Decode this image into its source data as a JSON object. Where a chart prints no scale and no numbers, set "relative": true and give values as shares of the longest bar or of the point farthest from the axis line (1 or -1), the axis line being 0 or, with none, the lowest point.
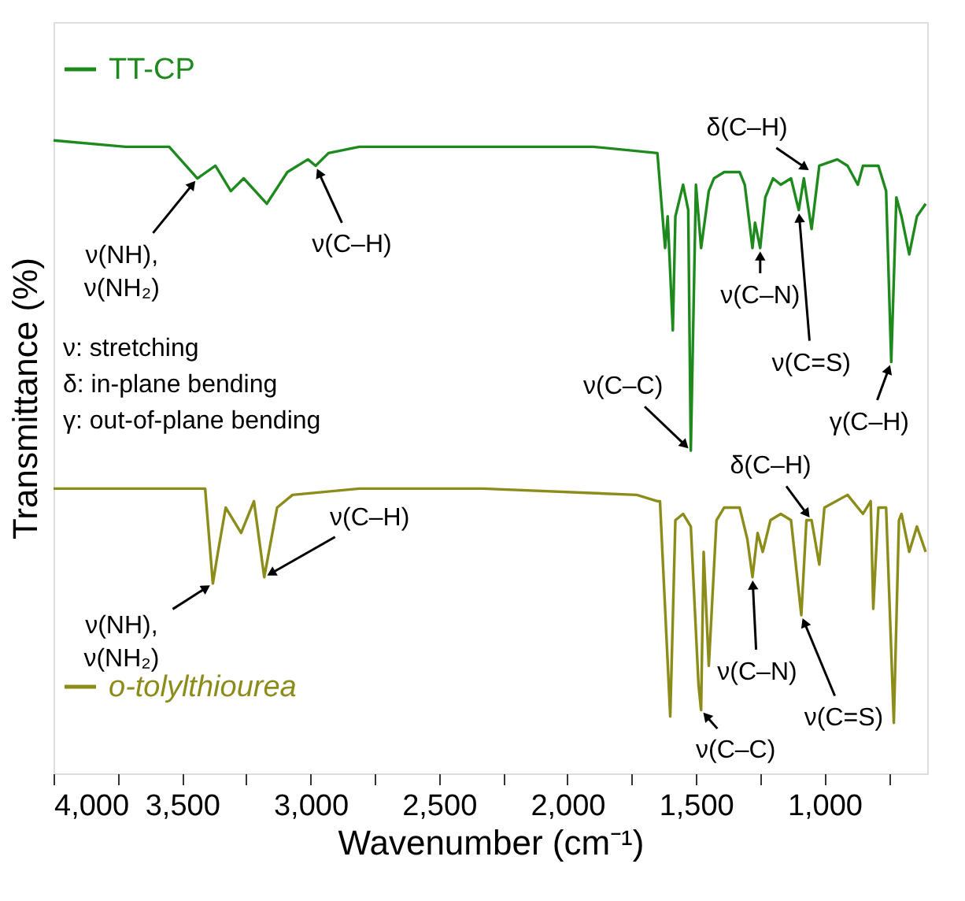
{
  "chart_data": {
    "type": "line",
    "relative": true,
    "legend": "left",
    "line_style": "solid",
    "marker": "none",
    "xlabel": "Wavenumber (cm⁻¹)",
    "ylabel": "Transmittance (%)",
    "xlim": [
      4000,
      600
    ],
    "xticks": [
      {
        "value": 4000,
        "label": "4,000"
      },
      {
        "value": 3750,
        "label": null
      },
      {
        "value": 3500,
        "label": "3,500"
      },
      {
        "value": 3250,
        "label": null
      },
      {
        "value": 3000,
        "label": "3,000"
      },
      {
        "value": 2750,
        "label": null
      },
      {
        "value": 2500,
        "label": "2,500"
      },
      {
        "value": 2250,
        "label": null
      },
      {
        "value": 2000,
        "label": "2,000"
      },
      {
        "value": 1750,
        "label": null
      },
      {
        "value": 1500,
        "label": "1,500"
      },
      {
        "value": 1250,
        "label": null
      },
      {
        "value": 1000,
        "label": "1,000"
      },
      {
        "value": 750,
        "label": null
      }
    ],
    "series": [
      {
        "name": "TT-CP",
        "color": "#1e8a1e",
        "x": [
          4000,
          3720,
          3550,
          3440,
          3370,
          3310,
          3260,
          3170,
          3090,
          3010,
          2980,
          2930,
          2810,
          2320,
          1900,
          1650,
          1620,
          1610,
          1590,
          1580,
          1550,
          1530,
          1520,
          1500,
          1480,
          1450,
          1430,
          1390,
          1330,
          1310,
          1280,
          1270,
          1250,
          1230,
          1200,
          1170,
          1130,
          1100,
          1080,
          1050,
          1020,
          950,
          910,
          870,
          850,
          790,
          760,
          740,
          720,
          700,
          670,
          640,
          606
        ],
        "values": [
          1.0,
          0.99,
          0.99,
          0.94,
          0.96,
          0.92,
          0.94,
          0.9,
          0.95,
          0.97,
          0.96,
          0.98,
          0.99,
          0.99,
          0.99,
          0.98,
          0.83,
          0.88,
          0.7,
          0.88,
          0.93,
          0.89,
          0.51,
          0.93,
          0.83,
          0.92,
          0.94,
          0.95,
          0.95,
          0.93,
          0.83,
          0.87,
          0.83,
          0.91,
          0.94,
          0.93,
          0.94,
          0.89,
          0.94,
          0.86,
          0.96,
          0.97,
          0.96,
          0.93,
          0.96,
          0.96,
          0.92,
          0.65,
          0.91,
          0.88,
          0.82,
          0.88,
          0.9
        ]
      },
      {
        "name": "o-tolylthiourea",
        "color": "#8c8c1a",
        "x": [
          4000,
          3410,
          3380,
          3360,
          3330,
          3270,
          3220,
          3180,
          3130,
          3070,
          2810,
          2330,
          1730,
          1650,
          1640,
          1600,
          1580,
          1550,
          1520,
          1490,
          1480,
          1470,
          1450,
          1420,
          1390,
          1330,
          1300,
          1280,
          1260,
          1240,
          1210,
          1170,
          1130,
          1090,
          1070,
          1050,
          1020,
          1000,
          910,
          850,
          820,
          810,
          790,
          760,
          730,
          710,
          700,
          670,
          640,
          606
        ],
        "values": [
          0.45,
          0.45,
          0.3,
          0.35,
          0.42,
          0.38,
          0.43,
          0.31,
          0.42,
          0.44,
          0.45,
          0.45,
          0.44,
          0.43,
          0.43,
          0.09,
          0.4,
          0.41,
          0.39,
          0.14,
          0.1,
          0.35,
          0.17,
          0.4,
          0.42,
          0.42,
          0.37,
          0.31,
          0.38,
          0.35,
          0.4,
          0.41,
          0.4,
          0.25,
          0.4,
          0.4,
          0.33,
          0.42,
          0.44,
          0.41,
          0.43,
          0.26,
          0.42,
          0.42,
          0.08,
          0.4,
          0.41,
          0.35,
          0.39,
          0.35
        ]
      }
    ],
    "annotations": [
      "ν: stretching",
      "δ: in-plane bending",
      "γ: out-of-plane bending",
      {
        "text": "ν(NH),\nν(NH₂)",
        "x": 3440,
        "y": 0.94
      },
      {
        "text": "ν(C–H)",
        "x": 2980,
        "y": 0.96
      },
      {
        "text": "ν(C–C)",
        "x": 1520,
        "y": 0.51
      },
      {
        "text": "δ(C–H)",
        "x": 1050,
        "y": 0.95
      },
      {
        "text": "ν(C–N)",
        "x": 1250,
        "y": 0.83
      },
      {
        "text": "ν(C=S)",
        "x": 1100,
        "y": 0.89
      },
      {
        "text": "γ(C–H)",
        "x": 740,
        "y": 0.65
      },
      {
        "text": "ν(NH),\nν(NH₂)",
        "x": 3380,
        "y": 0.3
      },
      {
        "text": "ν(C–H)",
        "x": 3180,
        "y": 0.31
      },
      {
        "text": "δ(C–H)",
        "x": 1050,
        "y": 0.4
      },
      {
        "text": "ν(C–N)",
        "x": 1280,
        "y": 0.31
      },
      {
        "text": "ν(C–C)",
        "x": 1480,
        "y": 0.1
      },
      {
        "text": "ν(C=S)",
        "x": 1090,
        "y": 0.25
      }
    ]
  }
}
